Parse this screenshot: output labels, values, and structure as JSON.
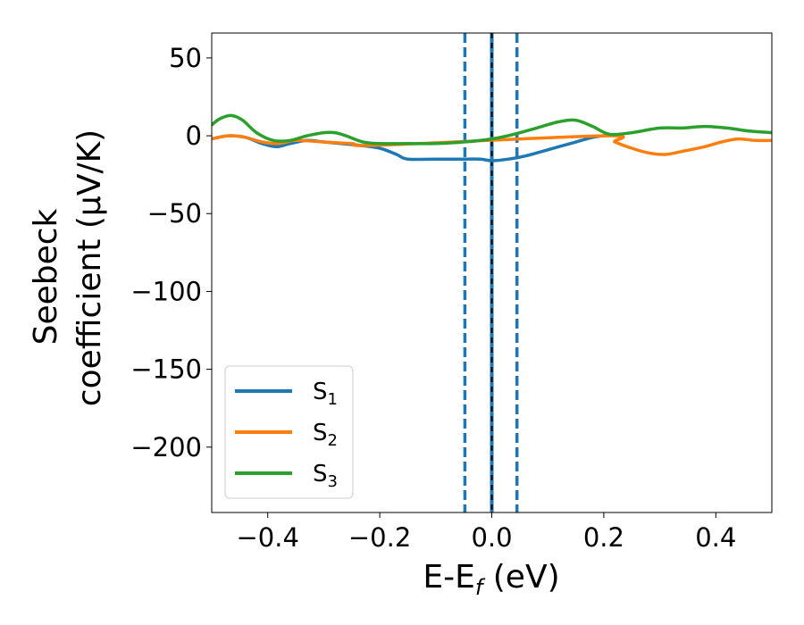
{
  "chart_data": {
    "type": "line",
    "xlabel": "E-E",
    "xlabel_sub": "f",
    "xlabel_unit": " (eV)",
    "ylabel_line1": "Seebeck",
    "ylabel_line2": "coefficient  (μV/K)",
    "xlim": [
      -0.5,
      0.5
    ],
    "ylim": [
      -242,
      66
    ],
    "x_ticks": [
      -0.4,
      -0.2,
      0.0,
      0.2,
      0.4
    ],
    "x_tick_labels": [
      "−0.4",
      "−0.2",
      "0.0",
      "0.2",
      "0.4"
    ],
    "y_ticks": [
      50,
      0,
      -50,
      -100,
      -150,
      -200
    ],
    "y_tick_labels": [
      "50",
      "0",
      "−50",
      "−100",
      "−150",
      "−200"
    ],
    "legend_position": "lower-left",
    "vertical_lines": [
      {
        "x": -0.048,
        "color": "#1f77b4",
        "style": "dashed"
      },
      {
        "x": 0.0,
        "color": "#1f77b4",
        "style": "solid"
      },
      {
        "x": 0.0,
        "color": "#000000",
        "style": "dashed"
      },
      {
        "x": 0.045,
        "color": "#1f77b4",
        "style": "dashed"
      }
    ],
    "series": [
      {
        "name": "S",
        "sub": "1",
        "color": "#1f77b4",
        "x": [
          -0.5,
          -0.47,
          -0.44,
          -0.41,
          -0.385,
          -0.36,
          -0.33,
          -0.3,
          -0.27,
          -0.24,
          -0.2,
          -0.17,
          -0.15,
          -0.1,
          -0.05,
          -0.02,
          0.0,
          0.03,
          0.06,
          0.1,
          0.14,
          0.18,
          0.2
        ],
        "y": [
          -2,
          0,
          -1,
          -5,
          -7,
          -5,
          -3,
          -4,
          -5,
          -6,
          -8,
          -12,
          -15,
          -15,
          -15,
          -15,
          -16,
          -15,
          -13,
          -9,
          -5,
          -1,
          0
        ]
      },
      {
        "name": "S",
        "sub": "2",
        "color": "#ff7f0e",
        "x": [
          -0.5,
          -0.47,
          -0.44,
          -0.41,
          -0.38,
          -0.35,
          -0.3,
          -0.25,
          -0.2,
          0.2,
          0.22,
          0.25,
          0.28,
          0.31,
          0.34,
          0.38,
          0.41,
          0.44,
          0.47,
          0.5
        ],
        "y": [
          -2,
          0,
          -1,
          -4,
          -5,
          -3,
          -4,
          -5,
          -6,
          0,
          -4,
          -8,
          -11,
          -12,
          -10,
          -7,
          -4,
          -2,
          -3,
          -3
        ]
      },
      {
        "name": "S",
        "sub": "3",
        "color": "#2ca02c",
        "x": [
          -0.5,
          -0.485,
          -0.465,
          -0.445,
          -0.42,
          -0.39,
          -0.36,
          -0.33,
          -0.3,
          -0.28,
          -0.26,
          -0.23,
          -0.2,
          -0.15,
          -0.1,
          -0.05,
          0.0,
          0.04,
          0.08,
          0.12,
          0.15,
          0.18,
          0.21,
          0.25,
          0.3,
          0.34,
          0.38,
          0.42,
          0.46,
          0.5
        ],
        "y": [
          7,
          11,
          13,
          10,
          2,
          -3,
          -3,
          0,
          2,
          2,
          0,
          -4,
          -5,
          -5,
          -5,
          -4,
          -2,
          1,
          5,
          9,
          10,
          6,
          1,
          2,
          5,
          5,
          6,
          5,
          3,
          2
        ]
      }
    ]
  }
}
